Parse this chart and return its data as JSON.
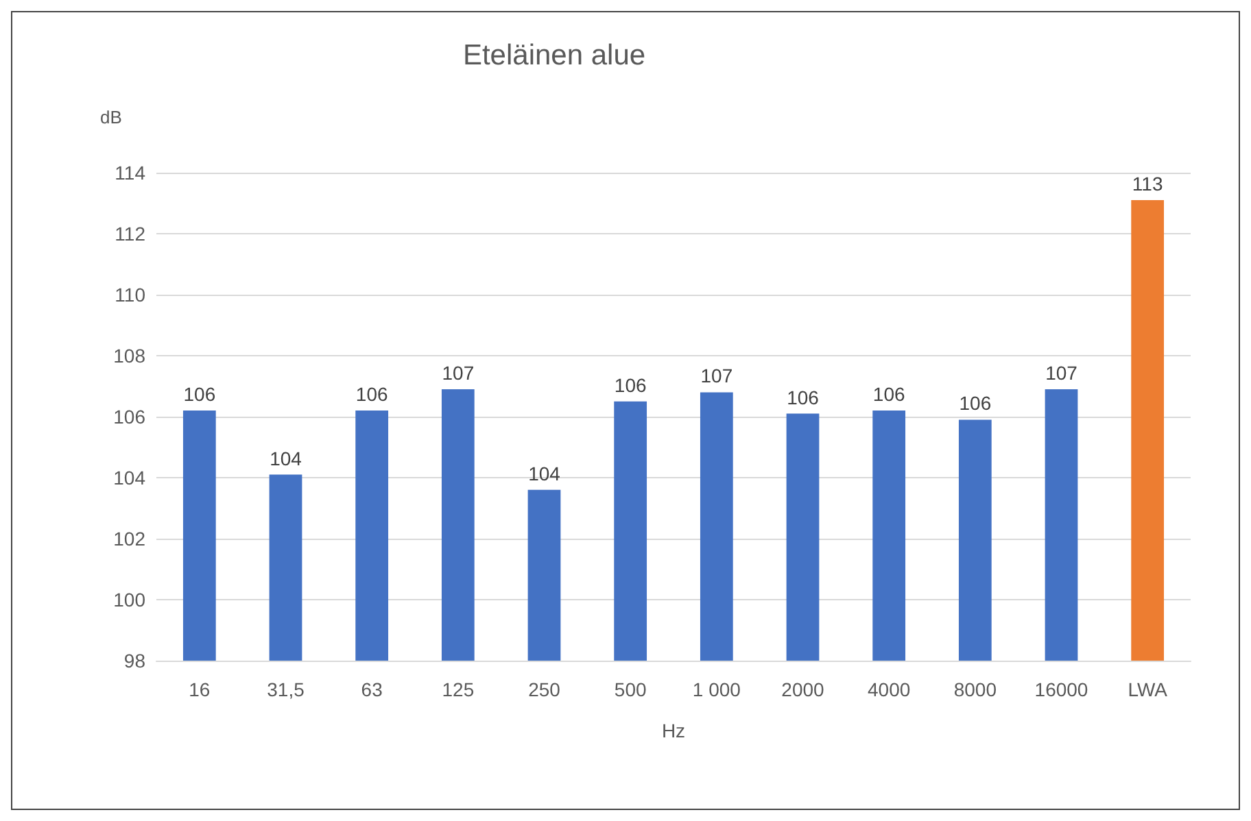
{
  "chart_data": {
    "type": "bar",
    "title": "Eteläinen alue",
    "xlabel": "Hz",
    "ylabel": "dB",
    "categories": [
      "16",
      "31,5",
      "63",
      "125",
      "250",
      "500",
      "1 000",
      "2000",
      "4000",
      "8000",
      "16000",
      "LWA"
    ],
    "values": [
      106.2,
      104.1,
      106.2,
      106.9,
      103.6,
      106.5,
      106.8,
      106.1,
      106.2,
      105.9,
      106.9,
      113.1
    ],
    "colors": [
      "#4472c4",
      "#4472c4",
      "#4472c4",
      "#4472c4",
      "#4472c4",
      "#4472c4",
      "#4472c4",
      "#4472c4",
      "#4472c4",
      "#4472c4",
      "#4472c4",
      "#ed7d31"
    ],
    "value_labels": [
      "106",
      "104",
      "106",
      "107",
      "104",
      "106",
      "107",
      "106",
      "106",
      "106",
      "107",
      "113"
    ],
    "ylim": [
      98,
      114
    ],
    "yticks": [
      98,
      100,
      102,
      104,
      106,
      108,
      110,
      112,
      114
    ],
    "grid": "y"
  }
}
